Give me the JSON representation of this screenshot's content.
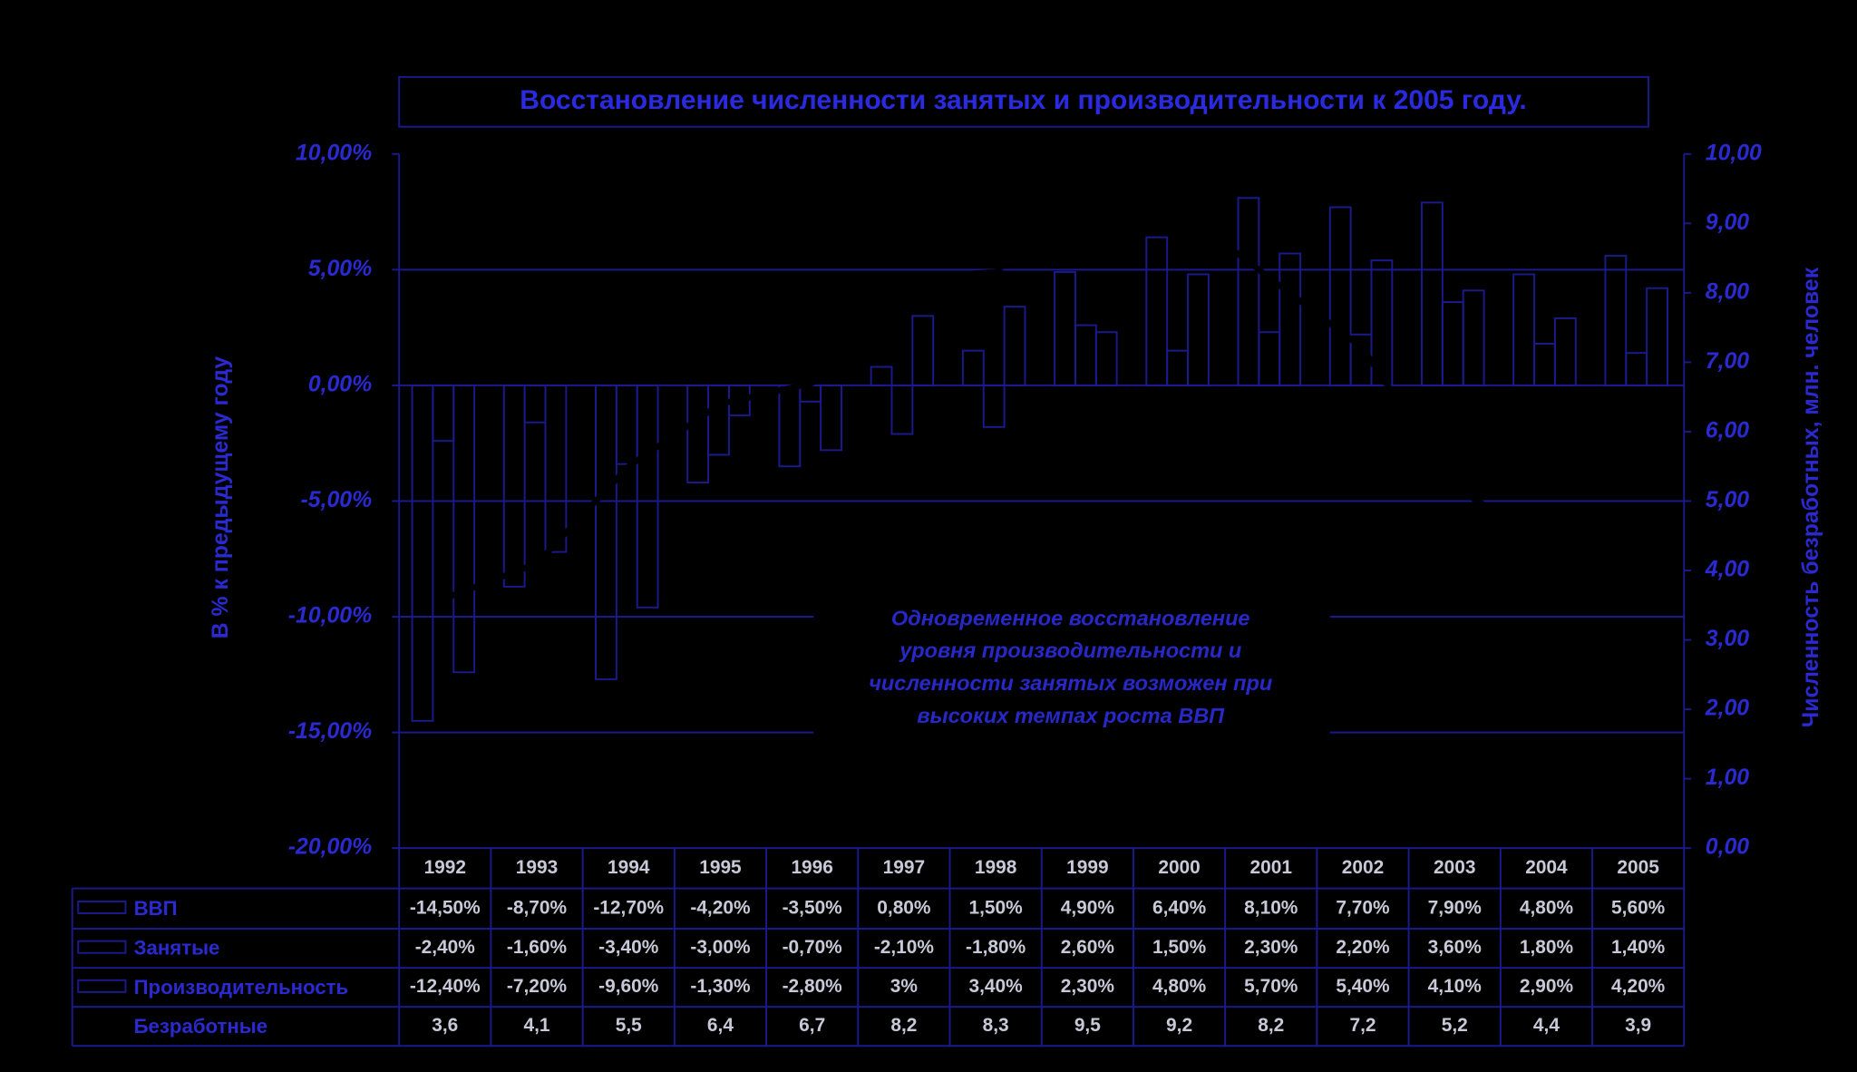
{
  "chart_data": {
    "type": "bar",
    "title": "Восстановление численности занятых и производительности к 2005 году.",
    "y_label": "В % к предыдущему году",
    "y2_label": "Численность безработных, млн. человек",
    "annotation": [
      "Одновременное восстановление",
      "уровня производительности и",
      "численности занятых возможен при",
      "высоких темпах роста ВВП"
    ],
    "categories": [
      "1992",
      "1993",
      "1994",
      "1995",
      "1996",
      "1997",
      "1998",
      "1999",
      "2000",
      "2001",
      "2002",
      "2003",
      "2004",
      "2005"
    ],
    "ylim": [
      -20,
      10
    ],
    "yticks": [
      {
        "value": -20,
        "label": "-20,00%"
      },
      {
        "value": -15,
        "label": "-15,00%"
      },
      {
        "value": -10,
        "label": "-10,00%"
      },
      {
        "value": -5,
        "label": "-5,00%"
      },
      {
        "value": 0,
        "label": "0,00%"
      },
      {
        "value": 5,
        "label": "5,00%"
      },
      {
        "value": 10,
        "label": "10,00%"
      }
    ],
    "y2lim": [
      0,
      10
    ],
    "y2ticks": [
      {
        "value": 0,
        "label": "0,00"
      },
      {
        "value": 1,
        "label": "1,00"
      },
      {
        "value": 2,
        "label": "2,00"
      },
      {
        "value": 3,
        "label": "3,00"
      },
      {
        "value": 4,
        "label": "4,00"
      },
      {
        "value": 5,
        "label": "5,00"
      },
      {
        "value": 6,
        "label": "6,00"
      },
      {
        "value": 7,
        "label": "7,00"
      },
      {
        "value": 8,
        "label": "8,00"
      },
      {
        "value": 9,
        "label": "9,00"
      },
      {
        "value": 10,
        "label": "10,00"
      }
    ],
    "grid": true,
    "series": [
      {
        "name": "ВВП",
        "color": "#1a1a8c",
        "values": [
          -14.5,
          -8.7,
          -12.7,
          -4.2,
          -3.5,
          0.8,
          1.5,
          4.9,
          6.4,
          8.1,
          7.7,
          7.9,
          4.8,
          5.6
        ],
        "value_labels": [
          "-14,50%",
          "-8,70%",
          "-12,70%",
          "-4,20%",
          "-3,50%",
          "0,80%",
          "1,50%",
          "4,90%",
          "6,40%",
          "8,10%",
          "7,70%",
          "7,90%",
          "4,80%",
          "5,60%"
        ]
      },
      {
        "name": "Занятые",
        "color": "#1a1a8c",
        "values": [
          -2.4,
          -1.6,
          -3.4,
          -3.0,
          -0.7,
          -2.1,
          -1.8,
          2.6,
          1.5,
          2.3,
          2.2,
          3.6,
          1.8,
          1.4
        ],
        "value_labels": [
          "-2,40%",
          "-1,60%",
          "-3,40%",
          "-3,00%",
          "-0,70%",
          "-2,10%",
          "-1,80%",
          "2,60%",
          "1,50%",
          "2,30%",
          "2,20%",
          "3,60%",
          "1,80%",
          "1,40%"
        ]
      },
      {
        "name": "Производительность",
        "color": "#1a1a8c",
        "values": [
          -12.4,
          -7.2,
          -9.6,
          -1.3,
          -2.8,
          3,
          3.4,
          2.3,
          4.8,
          5.7,
          5.4,
          4.1,
          2.9,
          4.2
        ],
        "value_labels": [
          "-12,40%",
          "-7,20%",
          "-9,60%",
          "-1,30%",
          "-2,80%",
          "3%",
          "3,40%",
          "2,30%",
          "4,80%",
          "5,70%",
          "5,40%",
          "4,10%",
          "2,90%",
          "4,20%"
        ]
      },
      {
        "name": "Безработные",
        "color": "#000000",
        "axis": "y2",
        "values": [
          3.6,
          4.1,
          5.5,
          6.4,
          6.7,
          8.2,
          8.3,
          9.5,
          9.2,
          8.2,
          7.2,
          5.2,
          4.4,
          3.9
        ],
        "value_labels": [
          "3,6",
          "4,1",
          "5,5",
          "6,4",
          "6,7",
          "8,2",
          "8,3",
          "9,5",
          "9,2",
          "8,2",
          "7,2",
          "5,2",
          "4,4",
          "3,9"
        ]
      }
    ]
  }
}
